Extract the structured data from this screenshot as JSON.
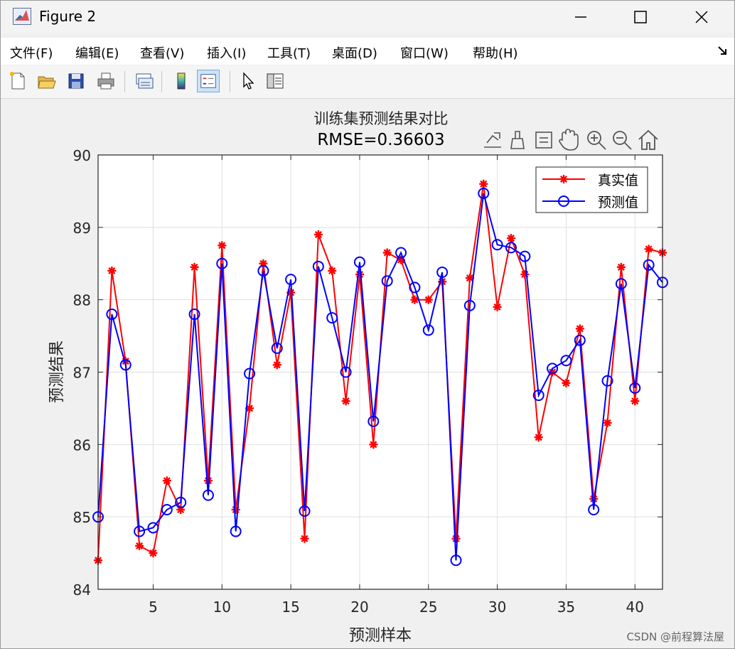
{
  "window": {
    "title": "Figure 2",
    "controls": {
      "minimize": "—",
      "maximize": "☐",
      "close": "✕"
    }
  },
  "menu": {
    "items": [
      "文件(F)",
      "编辑(E)",
      "查看(V)",
      "插入(I)",
      "工具(T)",
      "桌面(D)",
      "窗口(W)",
      "帮助(H)"
    ]
  },
  "toolbar": {
    "buttons": [
      "new-figure-icon",
      "open-file-icon",
      "save-icon",
      "print-icon",
      "link-plot-icon",
      "insert-colorbar-icon",
      "insert-legend-icon",
      "edit-plot-arrow-icon",
      "property-inspector-icon"
    ]
  },
  "axes_toolbar": [
    "export-icon",
    "brush-icon",
    "data-tips-icon",
    "pan-icon",
    "zoom-in-icon",
    "zoom-out-icon",
    "home-icon"
  ],
  "watermark": "CSDN @前程算法屋",
  "chart_data": {
    "type": "line",
    "title": "训练集预测结果对比",
    "subtitle": "RMSE=0.36603",
    "xlabel": "预测样本",
    "ylabel": "预测结果",
    "xlim": [
      1,
      42
    ],
    "ylim": [
      84,
      90
    ],
    "xticks": [
      5,
      10,
      15,
      20,
      25,
      30,
      35,
      40
    ],
    "yticks": [
      84,
      85,
      86,
      87,
      88,
      89,
      90
    ],
    "grid": true,
    "legend_position": "top-right",
    "x": [
      1,
      2,
      3,
      4,
      5,
      6,
      7,
      8,
      9,
      10,
      11,
      12,
      13,
      14,
      15,
      16,
      17,
      18,
      19,
      20,
      21,
      22,
      23,
      24,
      25,
      26,
      27,
      28,
      29,
      30,
      31,
      32,
      33,
      34,
      35,
      36,
      37,
      38,
      39,
      40,
      41,
      42
    ],
    "series": [
      {
        "name": "真实值",
        "color": "#ff0000",
        "marker": "asterisk",
        "values": [
          84.4,
          88.4,
          87.15,
          84.6,
          84.5,
          85.5,
          85.1,
          88.45,
          85.5,
          88.75,
          85.1,
          86.5,
          88.5,
          87.1,
          88.1,
          84.7,
          88.9,
          88.4,
          86.6,
          88.35,
          86.0,
          88.65,
          88.55,
          88.0,
          88.0,
          88.25,
          84.7,
          88.3,
          89.6,
          87.9,
          88.85,
          88.35,
          86.1,
          87.0,
          86.85,
          87.6,
          85.25,
          86.3,
          88.45,
          86.6,
          88.7,
          88.65
        ]
      },
      {
        "name": "预测值",
        "color": "#0000ff",
        "marker": "circle",
        "values": [
          85.0,
          87.8,
          87.1,
          84.8,
          84.85,
          85.1,
          85.2,
          87.8,
          85.3,
          88.5,
          84.8,
          86.98,
          88.4,
          87.33,
          88.28,
          85.08,
          88.46,
          87.75,
          87.0,
          88.52,
          86.32,
          88.26,
          88.65,
          88.17,
          87.58,
          88.38,
          84.4,
          87.92,
          89.47,
          88.76,
          88.72,
          88.6,
          86.68,
          87.05,
          87.16,
          87.44,
          85.1,
          86.88,
          88.22,
          86.78,
          88.48,
          88.24
        ]
      }
    ]
  }
}
